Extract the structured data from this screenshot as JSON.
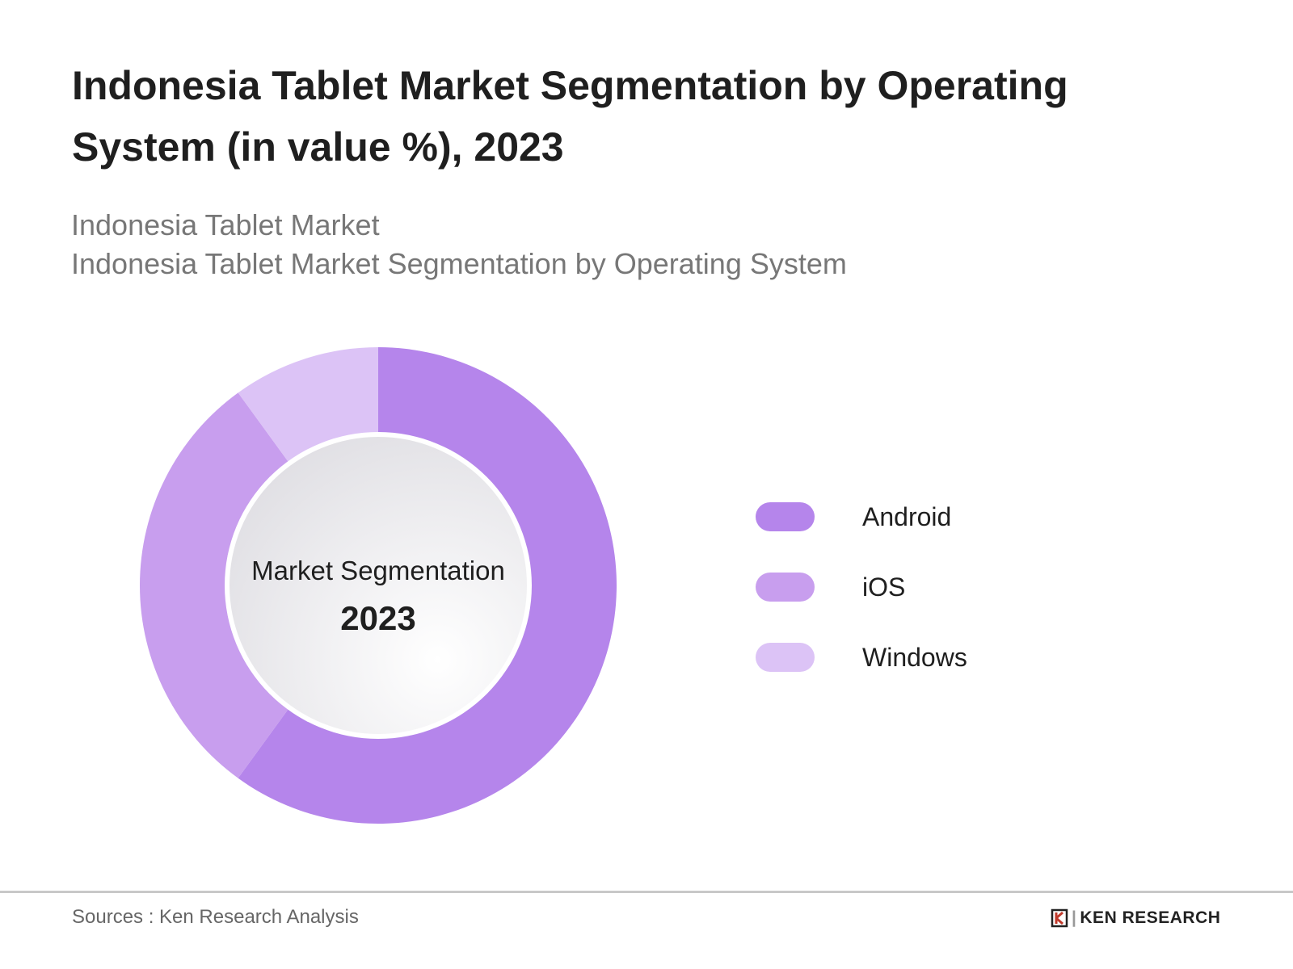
{
  "title": "Indonesia Tablet Market Segmentation by Operating System (in value %), 2023",
  "subtitle_1": "Indonesia Tablet Market",
  "subtitle_2": "Indonesia Tablet Market Segmentation by Operating System",
  "chart_data": {
    "type": "pie",
    "variant": "donut",
    "center_label": "Market Segmentation",
    "center_year": "2023",
    "categories": [
      "Android",
      "iOS",
      "Windows"
    ],
    "values": [
      60,
      30,
      10
    ],
    "colors": [
      "#b585eb",
      "#c89eee",
      "#dcc3f6"
    ],
    "legend_position": "right"
  },
  "footer": {
    "source": "Sources : Ken Research Analysis",
    "logo": "KEN RESEARCH"
  }
}
